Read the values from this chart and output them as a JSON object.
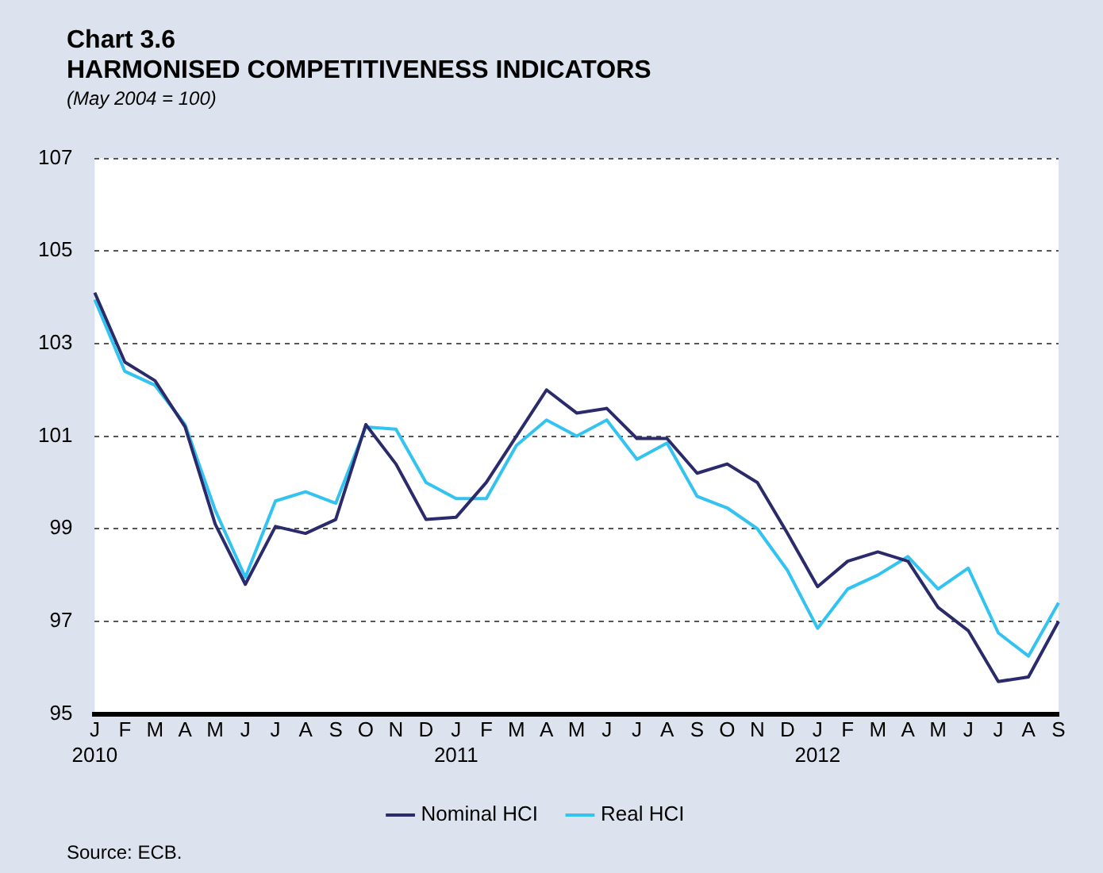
{
  "chart_data": {
    "type": "line",
    "title": "Chart 3.6\nHARMONISED COMPETITIVENESS INDICATORS",
    "subtitle": "(May 2004 = 100)",
    "categories": [
      "J 2010",
      "F",
      "M",
      "A",
      "M",
      "J",
      "J",
      "A",
      "S",
      "O",
      "N",
      "D",
      "J 2011",
      "F",
      "M",
      "A",
      "M",
      "J",
      "J",
      "A",
      "S",
      "O",
      "N",
      "D",
      "J 2012",
      "F",
      "M",
      "A",
      "M",
      "J",
      "J",
      "A",
      "S"
    ],
    "series": [
      {
        "name": "Nominal HCI",
        "color": "#2b2a6b",
        "values": [
          104.1,
          102.6,
          102.2,
          101.2,
          99.1,
          97.8,
          99.05,
          98.9,
          99.2,
          101.25,
          100.4,
          99.2,
          99.25,
          100.0,
          101.0,
          102.0,
          101.5,
          101.6,
          100.95,
          100.95,
          100.2,
          100.4,
          100.0,
          98.9,
          97.75,
          98.3,
          98.5,
          98.3,
          97.3,
          96.8,
          95.7,
          95.8,
          97.0
        ]
      },
      {
        "name": "Real HCI",
        "color": "#33c3f0",
        "values": [
          103.95,
          102.4,
          102.1,
          101.25,
          99.4,
          97.95,
          99.6,
          99.8,
          99.55,
          101.2,
          101.15,
          100.0,
          99.65,
          99.65,
          100.8,
          101.35,
          101.0,
          101.35,
          100.5,
          100.85,
          99.7,
          99.45,
          99.0,
          98.1,
          96.85,
          97.7,
          98.0,
          98.4,
          97.7,
          98.15,
          96.75,
          96.25,
          97.4
        ]
      }
    ],
    "ylim": [
      95,
      107
    ],
    "yticks": [
      95,
      97,
      99,
      101,
      103,
      105,
      107
    ],
    "grid": "y",
    "legend": "bottom",
    "marker": "none",
    "line_style": "solid",
    "annotations": [
      "Source: ECB."
    ]
  }
}
